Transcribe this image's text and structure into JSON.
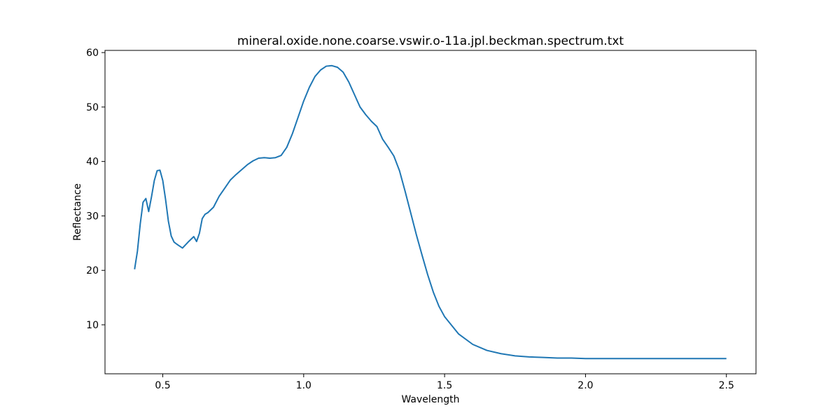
{
  "chart_data": {
    "type": "line",
    "title": "mineral.oxide.none.coarse.vswir.o-11a.jpl.beckman.spectrum.txt",
    "xlabel": "Wavelength",
    "ylabel": "Reflectance",
    "xlim": [
      0.295,
      2.605
    ],
    "ylim": [
      1.0,
      60.4
    ],
    "xticks": [
      0.5,
      1.0,
      1.5,
      2.0,
      2.5
    ],
    "xtick_labels": [
      "0.5",
      "1.0",
      "1.5",
      "2.0",
      "2.5"
    ],
    "yticks": [
      10,
      20,
      30,
      40,
      50,
      60
    ],
    "ytick_labels": [
      "10",
      "20",
      "30",
      "40",
      "50",
      "60"
    ],
    "grid": false,
    "series": [
      {
        "color": "#1f77b4",
        "x": [
          0.4,
          0.41,
          0.42,
          0.43,
          0.44,
          0.45,
          0.46,
          0.47,
          0.48,
          0.49,
          0.5,
          0.51,
          0.52,
          0.53,
          0.54,
          0.55,
          0.57,
          0.59,
          0.61,
          0.62,
          0.63,
          0.64,
          0.65,
          0.66,
          0.68,
          0.7,
          0.72,
          0.74,
          0.76,
          0.78,
          0.8,
          0.82,
          0.84,
          0.86,
          0.88,
          0.9,
          0.92,
          0.94,
          0.96,
          0.98,
          1.0,
          1.02,
          1.04,
          1.06,
          1.08,
          1.1,
          1.12,
          1.14,
          1.16,
          1.18,
          1.2,
          1.22,
          1.24,
          1.26,
          1.28,
          1.3,
          1.32,
          1.34,
          1.36,
          1.38,
          1.4,
          1.42,
          1.44,
          1.46,
          1.48,
          1.5,
          1.55,
          1.6,
          1.65,
          1.7,
          1.75,
          1.8,
          1.85,
          1.9,
          1.95,
          2.0,
          2.05,
          2.1,
          2.15,
          2.2,
          2.25,
          2.3,
          2.35,
          2.4,
          2.45,
          2.5
        ],
        "y": [
          20.2,
          23.5,
          28.5,
          32.5,
          33.2,
          30.8,
          33.5,
          36.5,
          38.3,
          38.4,
          36.5,
          33.0,
          29.0,
          26.3,
          25.2,
          24.8,
          24.1,
          25.2,
          26.2,
          25.3,
          26.8,
          29.5,
          30.3,
          30.6,
          31.6,
          33.6,
          35.1,
          36.6,
          37.6,
          38.5,
          39.4,
          40.1,
          40.6,
          40.7,
          40.6,
          40.7,
          41.1,
          42.6,
          45.1,
          48.1,
          51.1,
          53.6,
          55.6,
          56.8,
          57.5,
          57.6,
          57.3,
          56.4,
          54.6,
          52.3,
          50.0,
          48.6,
          47.4,
          46.4,
          44.1,
          42.6,
          41.0,
          38.3,
          34.5,
          30.5,
          26.5,
          22.8,
          19.2,
          16.0,
          13.4,
          11.5,
          8.3,
          6.4,
          5.3,
          4.7,
          4.3,
          4.1,
          4.0,
          3.9,
          3.9,
          3.8,
          3.8,
          3.8,
          3.8,
          3.8,
          3.8,
          3.8,
          3.8,
          3.8,
          3.8,
          3.8
        ]
      }
    ]
  }
}
